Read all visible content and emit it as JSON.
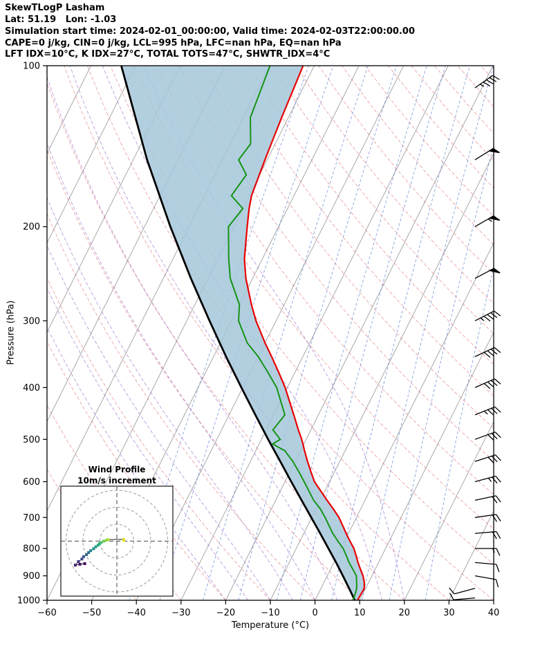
{
  "header": {
    "title": "SkewTLogP Lasham",
    "location": "Lat: 51.19   Lon: -1.03",
    "times": "Simulation start time: 2024-02-01_00:00:00, Valid time: 2024-02-03T22:00:00.00",
    "indices1": "CAPE=0 j/kg, CIN=0 j/kg, LCL=995 hPa, LFC=nan hPa, EQ=nan hPa",
    "indices2": "LFT IDX=10°C, K IDX=27°C, TOTAL TOTS=47°C, SHWTR_IDX=4°C"
  },
  "chart_data": {
    "type": "line",
    "variant": "skewT-logP-sounding",
    "title": "SkewTLogP Lasham",
    "xlabel": "Temperature (°C)",
    "ylabel": "Pressure (hPa)",
    "x_range": [
      -60,
      40
    ],
    "x_ticks": [
      -60,
      -50,
      -40,
      -30,
      -20,
      -10,
      0,
      10,
      20,
      30,
      40
    ],
    "pressure_range_hpa": [
      100,
      1000
    ],
    "pressure_ticks": [
      100,
      200,
      300,
      400,
      500,
      600,
      700,
      800,
      900,
      1000
    ],
    "grid": {
      "isotherms": {
        "min": -120,
        "max": 40,
        "step": 10
      },
      "dry_adiabats": {
        "min": -40,
        "max": 210,
        "step": 10
      },
      "moist_adiabats": [
        -20,
        -15,
        -10,
        -5,
        0,
        5,
        10,
        15,
        20
      ],
      "mixing_ratio_g_kg": [
        0.1,
        0.2,
        0.5,
        1,
        2,
        3,
        5,
        8,
        12,
        20
      ]
    },
    "colors": {
      "temperature": "#e80000",
      "dewpoint": "#149414",
      "parcel": "#000000",
      "shade": "#a5c7db",
      "isotherm": "#a8a8a8",
      "dry_adiabat": "#dd6666",
      "moist_adiabat": "#9a64c8",
      "mixing_ratio": "#4a6fd4",
      "barb": "#000000"
    },
    "sounding": {
      "pressure_hpa": [
        1000,
        975,
        950,
        925,
        900,
        875,
        850,
        825,
        800,
        775,
        750,
        700,
        675,
        650,
        600,
        575,
        550,
        525,
        510,
        500,
        480,
        450,
        400,
        375,
        350,
        330,
        300,
        280,
        250,
        230,
        200,
        185,
        175,
        160,
        150,
        140,
        125,
        100
      ],
      "temperature_c": [
        9.5,
        9.6,
        9.7,
        9.0,
        8.0,
        6.7,
        5.4,
        4.2,
        2.9,
        1.2,
        -0.5,
        -3.9,
        -6.1,
        -8.5,
        -13.4,
        -15.3,
        -17.2,
        -19.1,
        -20.2,
        -21.0,
        -22.8,
        -25.5,
        -30.5,
        -33.6,
        -37.0,
        -40.0,
        -44.5,
        -47.3,
        -51.5,
        -54.0,
        -57.0,
        -58.6,
        -59.5,
        -60.1,
        -60.5,
        -60.9,
        -61.5,
        -62.5
      ],
      "dewpoint_c": [
        8.5,
        8.3,
        8.0,
        7.3,
        6.5,
        5.0,
        3.4,
        2.0,
        0.5,
        -1.5,
        -3.5,
        -7.0,
        -9.0,
        -11.5,
        -15.7,
        -18.0,
        -20.5,
        -23.5,
        -27.0,
        -25.8,
        -28.5,
        -27.5,
        -32.4,
        -36.0,
        -40.0,
        -44.0,
        -48.4,
        -50.0,
        -55.0,
        -57.5,
        -61.2,
        -60.0,
        -64.0,
        -63.0,
        -66.4,
        -65.5,
        -68.5,
        -69.9
      ]
    },
    "parcel": {
      "pressure_hpa": [
        1000,
        950,
        900,
        850,
        800,
        750,
        700,
        650,
        600,
        550,
        500,
        450,
        400,
        350,
        300,
        250,
        200,
        150,
        100
      ],
      "temperature_c": [
        8.9,
        6.3,
        3.5,
        0.5,
        -2.8,
        -6.3,
        -10.1,
        -14.2,
        -18.6,
        -23.3,
        -28.5,
        -34.1,
        -40.3,
        -47.2,
        -54.9,
        -63.8,
        -74.2,
        -86.9,
        -103.2
      ]
    },
    "wind_profile": {
      "pressure_hpa": [
        990,
        950,
        900,
        850,
        800,
        750,
        700,
        650,
        600,
        550,
        500,
        450,
        400,
        350,
        300,
        250,
        200,
        150,
        110
      ],
      "direction_deg": [
        265,
        255,
        100,
        95,
        90,
        85,
        82,
        78,
        75,
        72,
        70,
        68,
        66,
        65,
        63,
        62,
        60,
        58,
        55
      ],
      "speed_kt": [
        8,
        8,
        10,
        12,
        15,
        18,
        20,
        22,
        25,
        28,
        32,
        35,
        38,
        42,
        45,
        50,
        55,
        50,
        45
      ]
    },
    "inset": {
      "title": "Wind Profile",
      "subtitle": "10m/s increment",
      "ring_interval_ms": 10,
      "rings_ms": [
        10,
        20,
        30
      ]
    }
  }
}
